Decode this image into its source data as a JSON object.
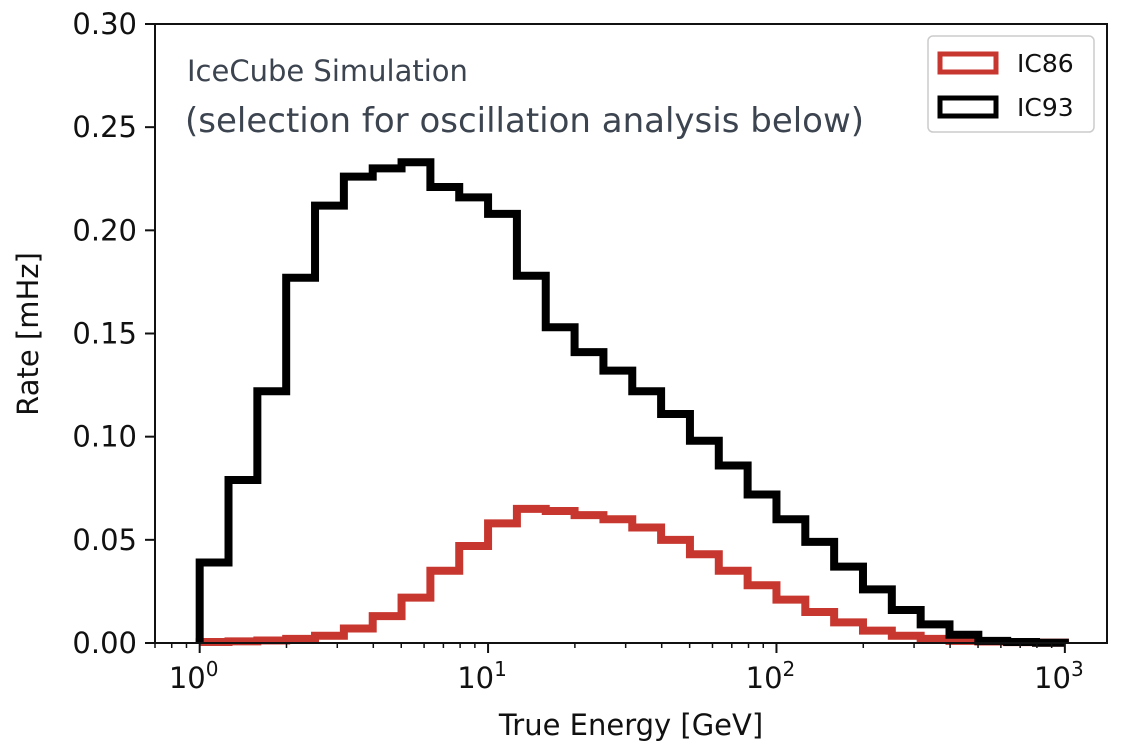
{
  "chart_data": {
    "type": "histogram-step",
    "x_scale": "log",
    "xlabel": "True Energy [GeV]",
    "ylabel": "Rate [mHz]",
    "xlim": [
      0.7,
      1400
    ],
    "ylim": [
      0,
      0.3
    ],
    "x_ticks": [
      {
        "value": 1,
        "base": "10",
        "exp": "0"
      },
      {
        "value": 10,
        "base": "10",
        "exp": "1"
      },
      {
        "value": 100,
        "base": "10",
        "exp": "2"
      },
      {
        "value": 1000,
        "base": "10",
        "exp": "3"
      }
    ],
    "y_ticks": [
      {
        "value": 0.0,
        "label": "0.00"
      },
      {
        "value": 0.05,
        "label": "0.05"
      },
      {
        "value": 0.1,
        "label": "0.10"
      },
      {
        "value": 0.15,
        "label": "0.15"
      },
      {
        "value": 0.2,
        "label": "0.20"
      },
      {
        "value": 0.25,
        "label": "0.25"
      },
      {
        "value": 0.3,
        "label": "0.30"
      }
    ],
    "annotations": {
      "line1": "IceCube Simulation",
      "line2": "(selection for oscillation analysis below)"
    },
    "bin_edges_log10": [
      0,
      0.1,
      0.2,
      0.3,
      0.4,
      0.5,
      0.6,
      0.7,
      0.8,
      0.9,
      1.0,
      1.1,
      1.2,
      1.3,
      1.4,
      1.5,
      1.6,
      1.7,
      1.8,
      1.9,
      2.0,
      2.1,
      2.2,
      2.3,
      2.4,
      2.5,
      2.6,
      2.7,
      2.8,
      2.9,
      3.0
    ],
    "series": [
      {
        "name": "IC86",
        "color": "#c8372f",
        "values": [
          0.0005,
          0.0008,
          0.0012,
          0.002,
          0.0035,
          0.007,
          0.013,
          0.022,
          0.035,
          0.047,
          0.058,
          0.065,
          0.064,
          0.062,
          0.06,
          0.056,
          0.05,
          0.043,
          0.035,
          0.028,
          0.021,
          0.015,
          0.01,
          0.006,
          0.0035,
          0.002,
          0.001,
          0.0007,
          0.0004,
          0.0002
        ]
      },
      {
        "name": "IC93",
        "color": "#000000",
        "values": [
          0.039,
          0.079,
          0.122,
          0.177,
          0.212,
          0.226,
          0.23,
          0.233,
          0.221,
          0.216,
          0.208,
          0.178,
          0.153,
          0.141,
          0.132,
          0.122,
          0.111,
          0.098,
          0.086,
          0.072,
          0.06,
          0.049,
          0.037,
          0.026,
          0.016,
          0.009,
          0.004,
          0.001,
          0.0005,
          0.0001
        ]
      }
    ],
    "legend": {
      "position": "top-right",
      "entries": [
        {
          "label": "IC86",
          "color": "#c8372f"
        },
        {
          "label": "IC93",
          "color": "#000000"
        }
      ]
    }
  }
}
